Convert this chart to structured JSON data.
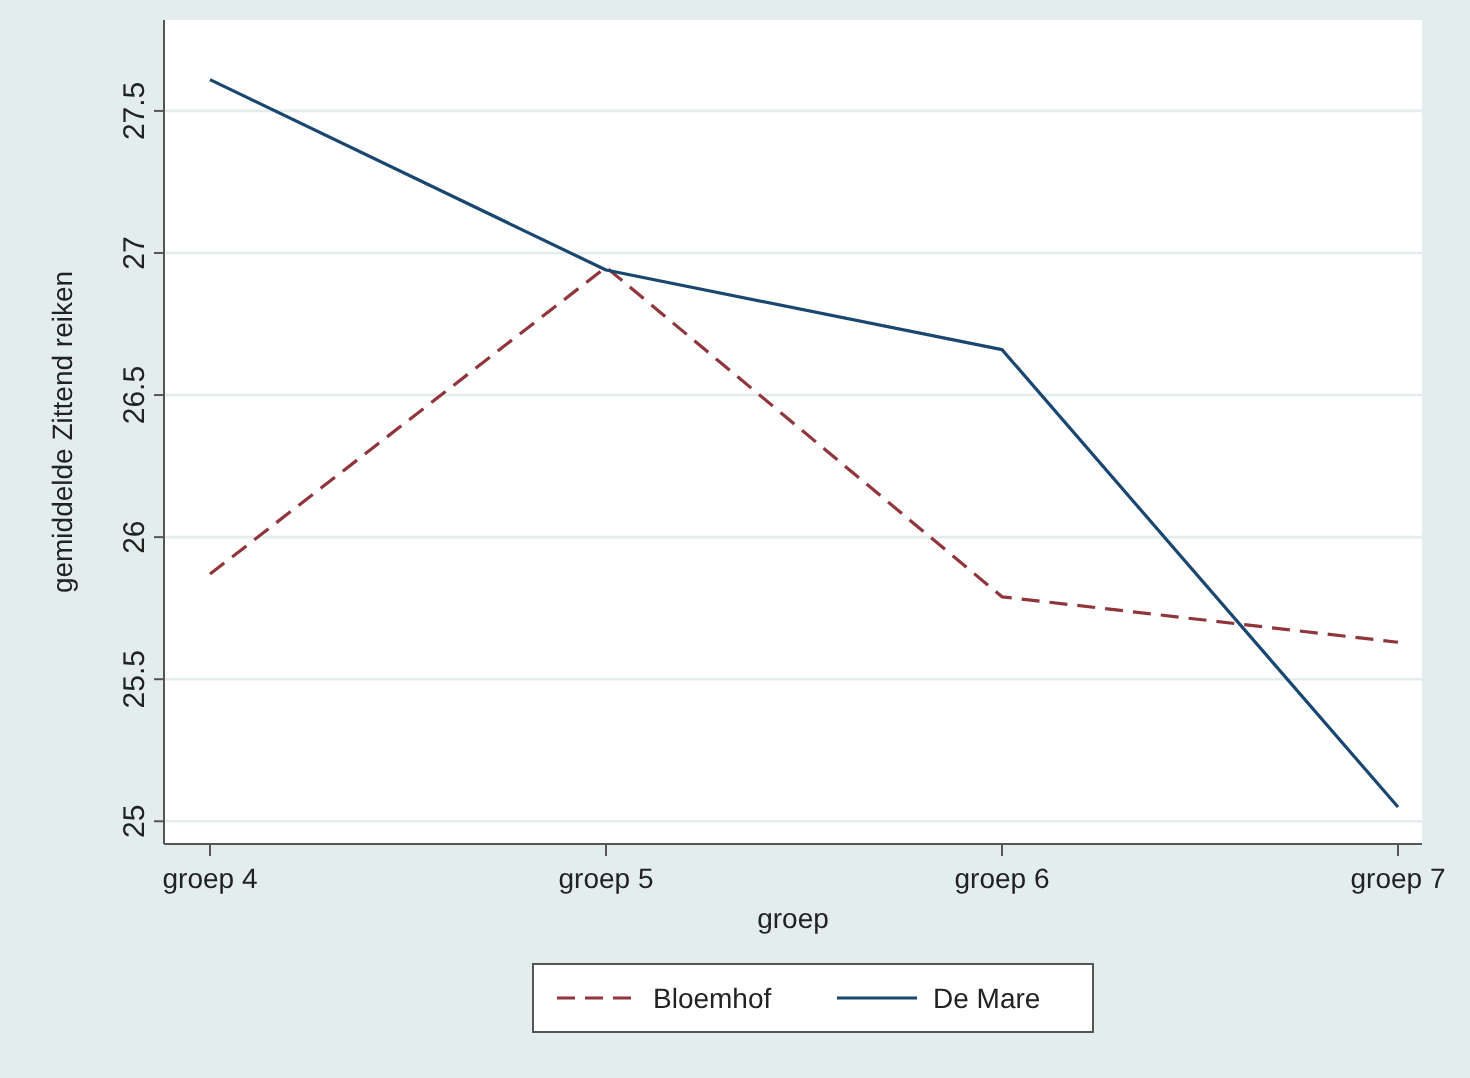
{
  "chart_data": {
    "type": "line",
    "xlabel": "groep",
    "ylabel": "gemiddelde Zittend reiken",
    "categories": [
      "groep 4",
      "groep 5",
      "groep 6",
      "groep 7"
    ],
    "series": [
      {
        "name": "Bloemhof",
        "color": "#90353b",
        "line_style": "dashed",
        "values": [
          25.87,
          26.95,
          25.79,
          25.63
        ]
      },
      {
        "name": "De Mare",
        "color": "#1a476f",
        "line_style": "solid",
        "values": [
          27.61,
          26.94,
          26.66,
          25.05
        ]
      }
    ],
    "ylim": [
      24.92,
      27.82
    ],
    "yticks": [
      25,
      25.5,
      26,
      26.5,
      27,
      27.5
    ],
    "grid": "y",
    "legend": "bottom"
  }
}
